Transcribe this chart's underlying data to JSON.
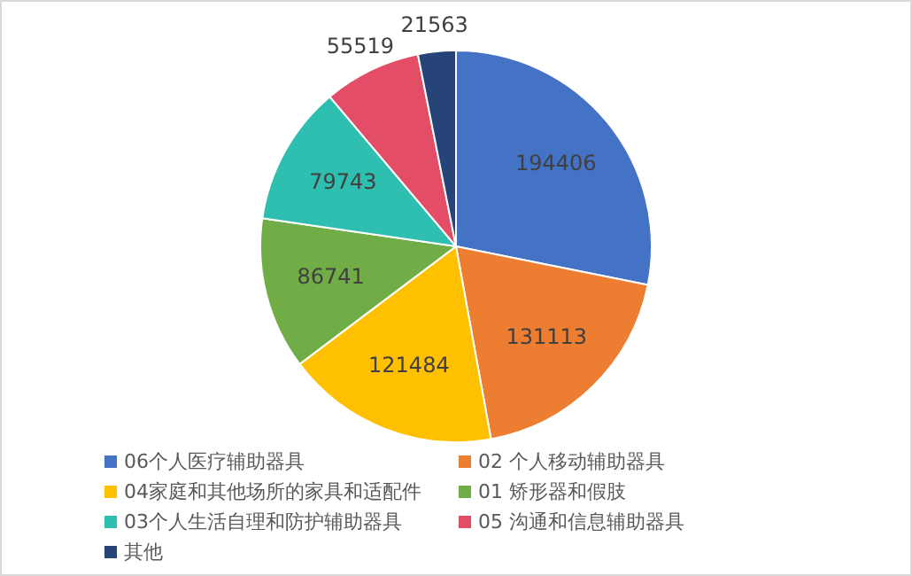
{
  "chart_data": {
    "type": "pie",
    "categories": [
      "06个人医疗辅助器具",
      "02 个人移动辅助器具",
      "04家庭和其他场所的家具和适配件",
      "01 矫形器和假肢",
      "03个人生活自理和防护辅助器具",
      "05 沟通和信息辅助器具",
      "其他"
    ],
    "values": [
      194406,
      131113,
      121484,
      86741,
      79743,
      55519,
      21563
    ],
    "colors": [
      "#4472c4",
      "#ed7d31",
      "#ffc000",
      "#70ad47",
      "#2fbfb0",
      "#e34d65",
      "#264478"
    ],
    "data_labels": true,
    "legend": "bottom"
  }
}
